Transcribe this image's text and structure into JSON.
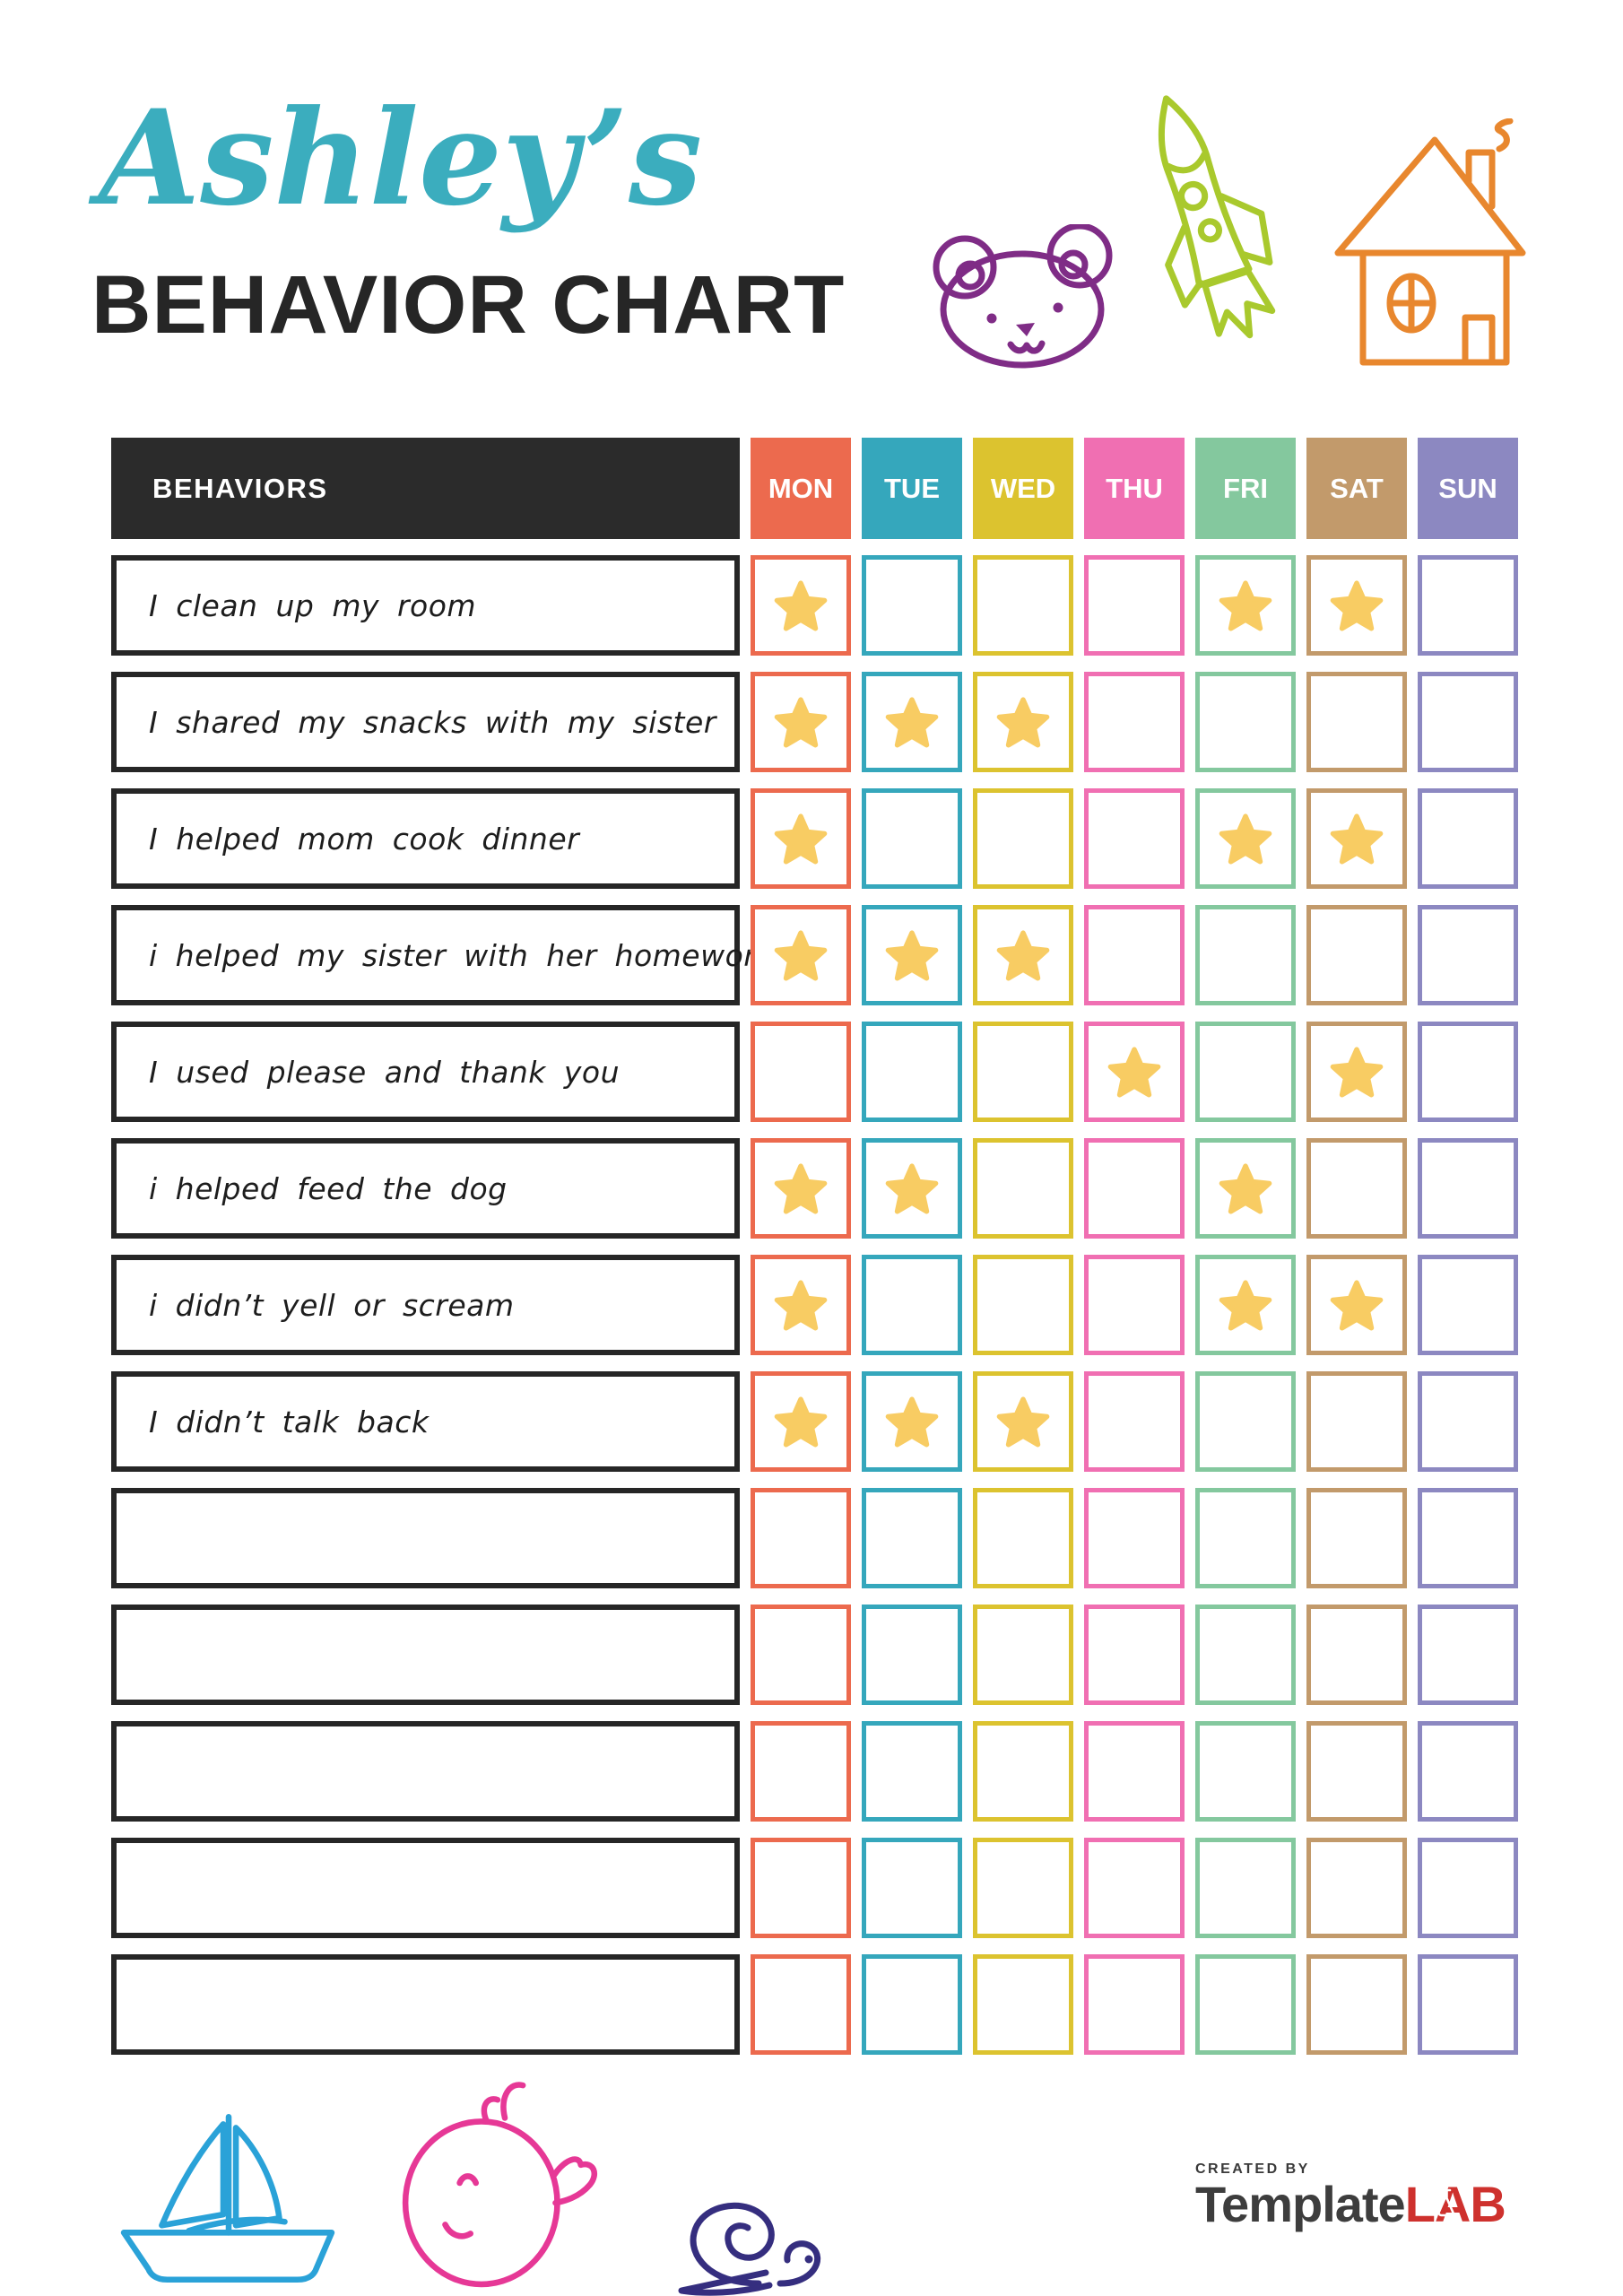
{
  "header": {
    "script_title": "Ashley’s",
    "main_title": "BEHAVIOR CHART"
  },
  "doodles": {
    "bear": {
      "color": "#7F2C86"
    },
    "rocket": {
      "color": "#A9C92D"
    },
    "house": {
      "color": "#E8872E"
    },
    "boat": {
      "color": "#2AA2D8"
    },
    "whale": {
      "color": "#E63896"
    },
    "snail": {
      "color": "#352E7F"
    }
  },
  "table": {
    "behaviors_header": "BEHAVIORS",
    "star_color": "#F8CC63",
    "days": [
      {
        "label": "MON",
        "color": "#EC6A4E"
      },
      {
        "label": "TUE",
        "color": "#35A7BC"
      },
      {
        "label": "WED",
        "color": "#DCC32F"
      },
      {
        "label": "THU",
        "color": "#F06FB2"
      },
      {
        "label": "FRI",
        "color": "#84C89E"
      },
      {
        "label": "SAT",
        "color": "#C29A6B"
      },
      {
        "label": "SUN",
        "color": "#8C88C1"
      }
    ],
    "rows": [
      {
        "behavior": "I clean up my room",
        "stars": [
          "MON",
          "FRI",
          "SAT"
        ]
      },
      {
        "behavior": "I shared my snacks with my sister",
        "stars": [
          "MON",
          "TUE",
          "WED"
        ]
      },
      {
        "behavior": "I helped mom cook dinner",
        "stars": [
          "MON",
          "FRI",
          "SAT"
        ]
      },
      {
        "behavior": "i helped my sister with her homework",
        "stars": [
          "MON",
          "TUE",
          "WED"
        ]
      },
      {
        "behavior": "I used please and thank you",
        "stars": [
          "THU",
          "SAT"
        ]
      },
      {
        "behavior": "i helped feed the dog",
        "stars": [
          "MON",
          "TUE",
          "FRI"
        ]
      },
      {
        "behavior": "i didn’t yell or scream",
        "stars": [
          "MON",
          "FRI",
          "SAT"
        ]
      },
      {
        "behavior": "I didn’t talk back",
        "stars": [
          "MON",
          "TUE",
          "WED"
        ]
      },
      {
        "behavior": "",
        "stars": []
      },
      {
        "behavior": "",
        "stars": []
      },
      {
        "behavior": "",
        "stars": []
      },
      {
        "behavior": "",
        "stars": []
      },
      {
        "behavior": "",
        "stars": []
      }
    ]
  },
  "footer": {
    "created_by": "CREATED BY",
    "brand_left": "Template",
    "brand_right": "LAB"
  }
}
